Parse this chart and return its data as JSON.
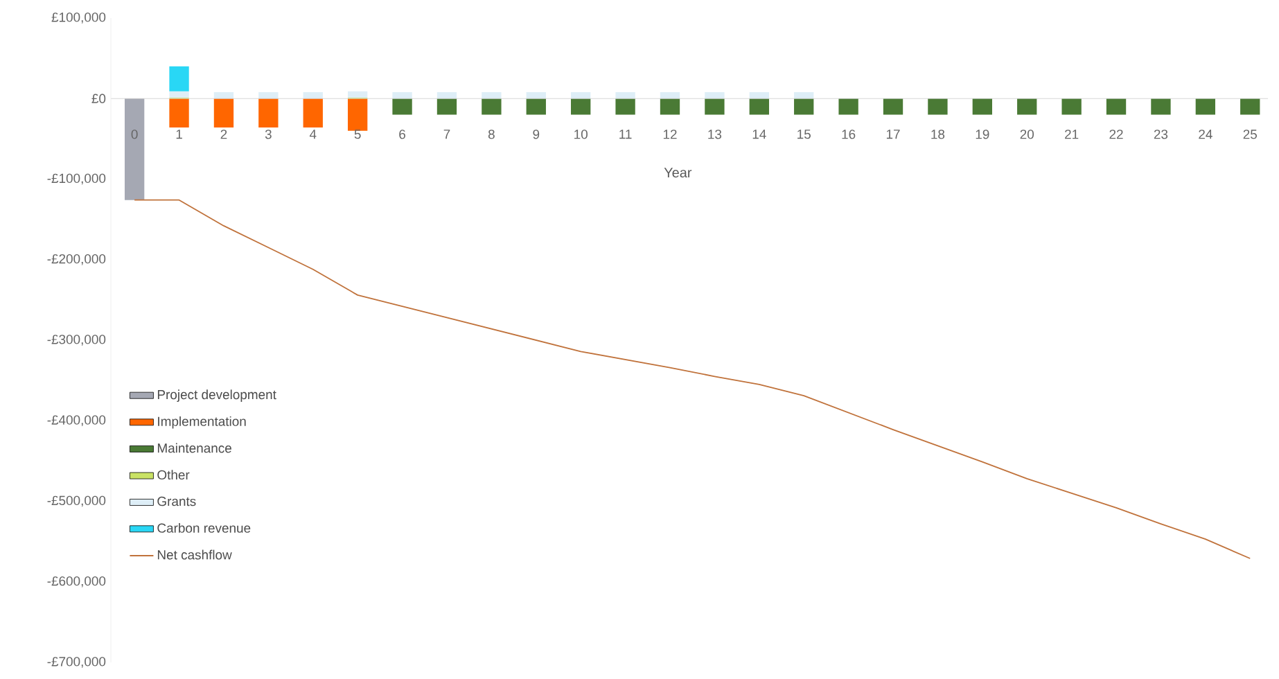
{
  "chart_data": {
    "type": "bar",
    "stacked": true,
    "xlabel": "Year",
    "legend": "left",
    "grid": false,
    "categories": [
      "0",
      "1",
      "2",
      "3",
      "4",
      "5",
      "6",
      "7",
      "8",
      "9",
      "10",
      "11",
      "12",
      "13",
      "14",
      "15",
      "16",
      "17",
      "18",
      "19",
      "20",
      "21",
      "22",
      "23",
      "24",
      "25"
    ],
    "ylim": [
      -700000,
      100000
    ],
    "yticks": [
      {
        "value": 100000,
        "label": "£100,000"
      },
      {
        "value": 0,
        "label": "£0"
      },
      {
        "value": -100000,
        "label": "-£100,000"
      },
      {
        "value": -200000,
        "label": "-£200,000"
      },
      {
        "value": -300000,
        "label": "-£300,000"
      },
      {
        "value": -400000,
        "label": "-£400,000"
      },
      {
        "value": -500000,
        "label": "-£500,000"
      },
      {
        "value": -600000,
        "label": "-£600,000"
      },
      {
        "value": -700000,
        "label": "-£700,000"
      }
    ],
    "series": [
      {
        "name": "Project development",
        "color": "#a5a8b3",
        "values": [
          -126000,
          null,
          null,
          null,
          null,
          null,
          null,
          null,
          null,
          null,
          null,
          null,
          null,
          null,
          null,
          null,
          null,
          null,
          null,
          null,
          null,
          null,
          null,
          null,
          null,
          null
        ]
      },
      {
        "name": "Implementation",
        "color": "#ff6600",
        "values": [
          null,
          -36000,
          -36000,
          -36000,
          -36000,
          -40000,
          null,
          null,
          null,
          null,
          null,
          null,
          null,
          null,
          null,
          null,
          null,
          null,
          null,
          null,
          null,
          null,
          null,
          null,
          null,
          null
        ]
      },
      {
        "name": "Maintenance",
        "color": "#4a7a35",
        "values": [
          null,
          null,
          null,
          null,
          null,
          null,
          -20000,
          -20000,
          -20000,
          -20000,
          -20000,
          -20000,
          -20000,
          -20000,
          -20000,
          -20000,
          -20000,
          -20000,
          -20000,
          -20000,
          -20000,
          -20000,
          -20000,
          -20000,
          -20000,
          -20000
        ]
      },
      {
        "name": "Other",
        "color": "#c9e265",
        "values": [
          null,
          1000,
          null,
          null,
          null,
          1000,
          null,
          null,
          null,
          null,
          null,
          null,
          null,
          null,
          null,
          null,
          null,
          null,
          null,
          null,
          null,
          null,
          null,
          null,
          null,
          null
        ]
      },
      {
        "name": "Grants",
        "color": "#deeef7",
        "values": [
          null,
          8000,
          8000,
          8000,
          8000,
          8000,
          8000,
          8000,
          8000,
          8000,
          8000,
          8000,
          8000,
          8000,
          8000,
          8000,
          null,
          null,
          null,
          null,
          null,
          null,
          null,
          null,
          null,
          null
        ]
      },
      {
        "name": "Carbon revenue",
        "color": "#29d7f5",
        "values": [
          null,
          31000,
          null,
          null,
          null,
          null,
          null,
          null,
          null,
          null,
          null,
          null,
          null,
          null,
          null,
          null,
          null,
          null,
          null,
          null,
          null,
          null,
          null,
          null,
          null,
          null
        ]
      },
      {
        "name": "Net cashflow",
        "type": "line",
        "color": "#c0723b",
        "values": [
          -126000,
          -126000,
          -158000,
          -185000,
          -212000,
          -244000,
          -258000,
          -272000,
          -286000,
          -300000,
          -314000,
          -324000,
          -334000,
          -345000,
          -355000,
          -369000,
          -390000,
          -411000,
          -431000,
          -451000,
          -472000,
          -490000,
          -508000,
          -528000,
          -547000,
          -571000
        ]
      }
    ]
  }
}
